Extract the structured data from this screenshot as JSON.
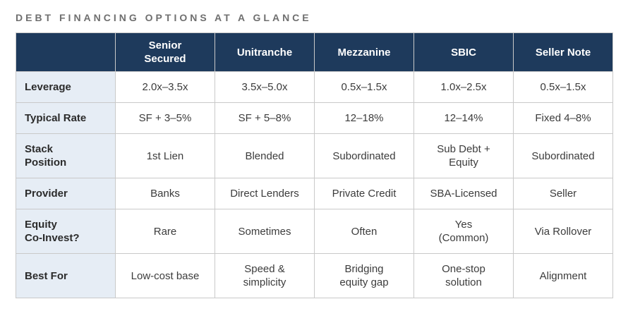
{
  "title": "DEBT FINANCING OPTIONS AT A GLANCE",
  "colors": {
    "header_bg": "#1e3a5c",
    "header_text": "#ffffff",
    "label_column_bg": "#e6edf5",
    "border": "#c9c9c9",
    "title_text": "#6f6f6f",
    "cell_text": "#3c3c3c"
  },
  "table": {
    "columns": [
      "Senior\nSecured",
      "Unitranche",
      "Mezzanine",
      "SBIC",
      "Seller Note"
    ],
    "rows": [
      {
        "label": "Leverage",
        "values": [
          "2.0x–3.5x",
          "3.5x–5.0x",
          "0.5x–1.5x",
          "1.0x–2.5x",
          "0.5x–1.5x"
        ]
      },
      {
        "label": "Typical Rate",
        "values": [
          "SF + 3–5%",
          "SF + 5–8%",
          "12–18%",
          "12–14%",
          "Fixed 4–8%"
        ]
      },
      {
        "label": "Stack\nPosition",
        "values": [
          "1st Lien",
          "Blended",
          "Subordinated",
          "Sub Debt +\nEquity",
          "Subordinated"
        ]
      },
      {
        "label": "Provider",
        "values": [
          "Banks",
          "Direct Lenders",
          "Private Credit",
          "SBA-Licensed",
          "Seller"
        ]
      },
      {
        "label": "Equity\nCo-Invest?",
        "values": [
          "Rare",
          "Sometimes",
          "Often",
          "Yes\n(Common)",
          "Via Rollover"
        ]
      },
      {
        "label": "Best For",
        "values": [
          "Low-cost base",
          "Speed &\nsimplicity",
          "Bridging\nequity gap",
          "One-stop\nsolution",
          "Alignment"
        ]
      }
    ]
  }
}
